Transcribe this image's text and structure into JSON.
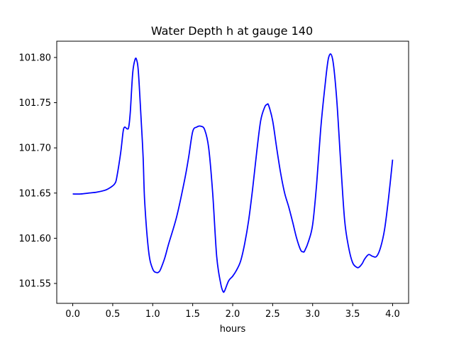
{
  "chart_data": {
    "type": "line",
    "title": "Water Depth h at gauge 140",
    "xlabel": "hours",
    "ylabel": "",
    "xlim": [
      -0.2,
      4.2
    ],
    "ylim": [
      101.528,
      101.818
    ],
    "x_ticks": [
      "0.0",
      "0.5",
      "1.0",
      "1.5",
      "2.0",
      "2.5",
      "3.0",
      "3.5",
      "4.0"
    ],
    "y_ticks": [
      "101.55",
      "101.60",
      "101.65",
      "101.70",
      "101.75",
      "101.80"
    ],
    "grid": false,
    "legend": "none",
    "series": [
      {
        "color": "#0000ff",
        "x": [
          0.0,
          0.1,
          0.2,
          0.3,
          0.4,
          0.45,
          0.5,
          0.53,
          0.55,
          0.6,
          0.63,
          0.65,
          0.68,
          0.7,
          0.72,
          0.75,
          0.78,
          0.8,
          0.82,
          0.85,
          0.88,
          0.9,
          0.95,
          1.0,
          1.05,
          1.08,
          1.1,
          1.15,
          1.2,
          1.3,
          1.4,
          1.45,
          1.5,
          1.55,
          1.6,
          1.65,
          1.7,
          1.75,
          1.8,
          1.85,
          1.88,
          1.9,
          1.95,
          2.0,
          2.05,
          2.1,
          2.15,
          2.2,
          2.25,
          2.3,
          2.35,
          2.4,
          2.43,
          2.45,
          2.5,
          2.55,
          2.6,
          2.65,
          2.7,
          2.75,
          2.8,
          2.85,
          2.88,
          2.9,
          2.95,
          3.0,
          3.05,
          3.1,
          3.15,
          3.2,
          3.25,
          3.3,
          3.35,
          3.4,
          3.45,
          3.5,
          3.55,
          3.58,
          3.62,
          3.65,
          3.7,
          3.75,
          3.8,
          3.85,
          3.9,
          3.95,
          4.0
        ],
        "y": [
          101.649,
          101.649,
          101.65,
          101.651,
          101.653,
          101.655,
          101.658,
          101.661,
          101.667,
          101.695,
          101.718,
          101.723,
          101.721,
          101.723,
          101.74,
          101.783,
          101.798,
          101.797,
          101.785,
          101.74,
          101.69,
          101.64,
          101.585,
          101.566,
          101.562,
          101.563,
          101.566,
          101.578,
          101.594,
          101.624,
          101.665,
          101.69,
          101.718,
          101.723,
          101.724,
          101.72,
          101.7,
          101.65,
          101.58,
          101.55,
          101.541,
          101.542,
          101.553,
          101.558,
          101.565,
          101.575,
          101.594,
          101.62,
          101.655,
          101.695,
          101.73,
          101.745,
          101.748,
          101.747,
          101.73,
          101.7,
          101.672,
          101.65,
          101.635,
          101.618,
          101.6,
          101.587,
          101.585,
          101.586,
          101.597,
          101.615,
          101.66,
          101.72,
          101.765,
          101.8,
          101.798,
          101.755,
          101.685,
          101.62,
          101.59,
          101.573,
          101.568,
          101.568,
          101.572,
          101.577,
          101.582,
          101.58,
          101.58,
          101.59,
          101.61,
          101.645,
          101.687
        ]
      }
    ]
  }
}
